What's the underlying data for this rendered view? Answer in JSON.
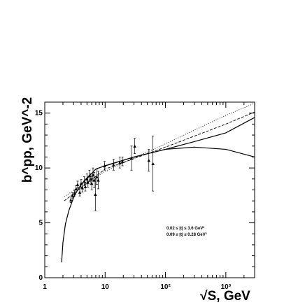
{
  "chart_data": {
    "type": "scatter",
    "title": "",
    "xlabel": "√S, GeV",
    "ylabel": "b^pp, GeV^-2",
    "x_scale": "log",
    "xlim": [
      1,
      3000
    ],
    "ylim": [
      0,
      16
    ],
    "grid": false,
    "legend": "none",
    "x_ticks": [
      {
        "value": 1,
        "label": "1"
      },
      {
        "value": 10,
        "label": "10"
      },
      {
        "value": 100,
        "label": "10²"
      },
      {
        "value": 1000,
        "label": "10³"
      }
    ],
    "y_ticks": [
      {
        "value": 0,
        "label": "0"
      },
      {
        "value": 5,
        "label": "5"
      },
      {
        "value": 10,
        "label": "10"
      },
      {
        "value": 15,
        "label": "15"
      }
    ],
    "annotations": [
      "0.02 ≤ |t| ≤ 3.6 GeV²",
      "0.09 ≤ |t| ≤ 0.28 GeV²"
    ],
    "points": [
      {
        "x": 2.7,
        "y": 7.1,
        "err": 0.25
      },
      {
        "x": 2.9,
        "y": 7.5,
        "err": 0.25
      },
      {
        "x": 3.1,
        "y": 7.7,
        "err": 0.3
      },
      {
        "x": 3.3,
        "y": 8.1,
        "err": 0.3
      },
      {
        "x": 3.5,
        "y": 8.5,
        "err": 0.3
      },
      {
        "x": 3.8,
        "y": 7.8,
        "err": 0.35
      },
      {
        "x": 4.0,
        "y": 8.6,
        "err": 0.35
      },
      {
        "x": 4.2,
        "y": 8.2,
        "err": 0.4
      },
      {
        "x": 4.5,
        "y": 8.8,
        "err": 0.4
      },
      {
        "x": 4.7,
        "y": 8.3,
        "err": 0.4
      },
      {
        "x": 5.0,
        "y": 9.0,
        "err": 0.45
      },
      {
        "x": 5.2,
        "y": 8.7,
        "err": 0.45
      },
      {
        "x": 5.5,
        "y": 9.3,
        "err": 0.5
      },
      {
        "x": 5.8,
        "y": 9.0,
        "err": 0.5
      },
      {
        "x": 6.0,
        "y": 8.6,
        "err": 0.6
      },
      {
        "x": 6.3,
        "y": 9.4,
        "err": 0.6
      },
      {
        "x": 6.6,
        "y": 8.9,
        "err": 0.7
      },
      {
        "x": 6.9,
        "y": 7.6,
        "err": 1.5
      },
      {
        "x": 7.3,
        "y": 9.2,
        "err": 0.7
      },
      {
        "x": 7.7,
        "y": 8.9,
        "err": 0.8
      },
      {
        "x": 9.8,
        "y": 10.2,
        "err": 0.4
      },
      {
        "x": 13.8,
        "y": 10.3,
        "err": 0.5
      },
      {
        "x": 17.5,
        "y": 10.5,
        "err": 0.5
      },
      {
        "x": 19.4,
        "y": 10.6,
        "err": 0.4
      },
      {
        "x": 27.4,
        "y": 10.9,
        "err": 1.1
      },
      {
        "x": 31.0,
        "y": 12.0,
        "err": 0.7
      },
      {
        "x": 53.0,
        "y": 10.7,
        "err": 1.0
      },
      {
        "x": 62.0,
        "y": 10.4,
        "err": 2.5
      }
    ],
    "curves": [
      {
        "style": "solid",
        "x": [
          1.9,
          2.0,
          2.2,
          2.5,
          3.0,
          3.5,
          4.0,
          5.0,
          6.0,
          7.0
        ],
        "y": [
          1.4,
          3.2,
          4.9,
          6.1,
          7.3,
          8.0,
          8.5,
          9.1,
          9.5,
          9.9
        ]
      },
      {
        "style": "solid",
        "x": [
          7,
          10,
          30,
          100,
          300,
          1000,
          3000
        ],
        "y": [
          9.9,
          10.2,
          11.0,
          11.7,
          12.4,
          13.2,
          14.6
        ]
      },
      {
        "style": "solid",
        "x": [
          10,
          30,
          100,
          300,
          1000,
          3000
        ],
        "y": [
          10.2,
          11.0,
          11.7,
          11.9,
          11.7,
          11.0
        ]
      },
      {
        "style": "dashed",
        "x": [
          2.1,
          10,
          100,
          1000,
          3000
        ],
        "y": [
          7.0,
          9.9,
          11.9,
          14.0,
          15.1
        ]
      },
      {
        "style": "dotted",
        "x": [
          2.1,
          10,
          100,
          1000,
          3000
        ],
        "y": [
          7.4,
          9.7,
          12.2,
          14.8,
          15.9
        ]
      }
    ]
  }
}
